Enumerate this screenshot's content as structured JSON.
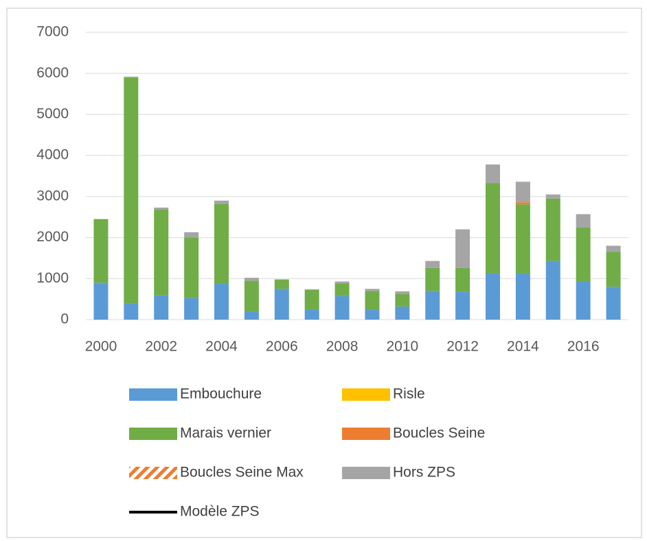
{
  "chart_data": {
    "type": "stacked_bar",
    "categories": [
      2000,
      null,
      2002,
      null,
      2004,
      null,
      2006,
      null,
      2008,
      null,
      2010,
      null,
      2012,
      null,
      2014,
      null,
      2016,
      null
    ],
    "series": [
      {
        "name": "Embouchure",
        "color": "#5b9bd5",
        "style": "fill",
        "values": [
          900,
          400,
          600,
          530,
          870,
          200,
          750,
          250,
          580,
          250,
          320,
          700,
          680,
          1130,
          1130,
          1430,
          930,
          800
        ]
      },
      {
        "name": "Risle",
        "color": "#ffc000",
        "style": "fill",
        "values": [
          0,
          0,
          0,
          0,
          0,
          0,
          0,
          0,
          0,
          0,
          0,
          0,
          0,
          0,
          0,
          0,
          0,
          0
        ]
      },
      {
        "name": "Marais vernier",
        "color": "#70ad47",
        "style": "fill",
        "values": [
          1550,
          5500,
          2080,
          1470,
          1950,
          750,
          230,
          470,
          300,
          450,
          300,
          560,
          580,
          2200,
          1680,
          1520,
          1320,
          850
        ]
      },
      {
        "name": "Boucles Seine",
        "color": "#ed7d31",
        "style": "fill",
        "values": [
          0,
          0,
          0,
          0,
          0,
          0,
          0,
          0,
          0,
          0,
          0,
          0,
          0,
          0,
          50,
          0,
          0,
          0
        ]
      },
      {
        "name": "Boucles Seine Max",
        "color": "#ed7d31",
        "style": "hatch",
        "values": [
          null,
          null,
          null,
          null,
          null,
          null,
          null,
          null,
          null,
          null,
          null,
          null,
          null,
          null,
          null,
          null,
          null,
          null
        ]
      },
      {
        "name": "Hors ZPS",
        "color": "#a5a5a5",
        "style": "fill",
        "values": [
          0,
          20,
          50,
          130,
          80,
          70,
          0,
          20,
          50,
          50,
          70,
          170,
          940,
          450,
          500,
          100,
          320,
          150
        ]
      },
      {
        "name": "Modèle ZPS",
        "color": "#000000",
        "style": "line",
        "values": [
          null,
          null,
          null,
          null,
          null,
          null,
          null,
          null,
          null,
          null,
          null,
          null,
          null,
          null,
          null,
          null,
          null,
          null
        ]
      }
    ],
    "ylim": [
      0,
      7000
    ],
    "yticks": [
      0,
      1000,
      2000,
      3000,
      4000,
      5000,
      6000,
      7000
    ],
    "grid": true
  }
}
